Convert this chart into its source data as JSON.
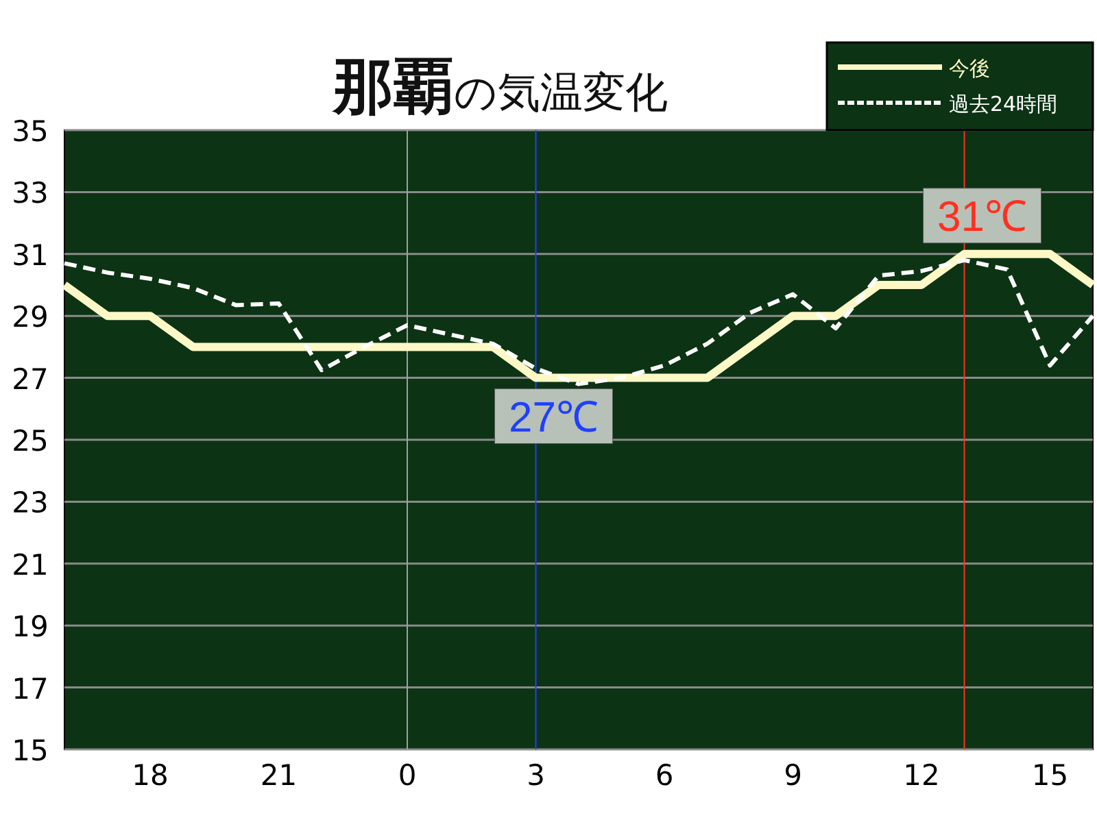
{
  "chart_data": {
    "type": "line",
    "title": "**那覇**の気温変化",
    "x": [
      "--01-01T16:00",
      "--01-01T17:00",
      "--01-01T18:00",
      "--01-01T19:00",
      "--01-01T20:00",
      "--01-01T21:00",
      "--01-01T22:00",
      "--01-01T23:00",
      "--01-02T00:00",
      "--01-02T01:00",
      "--01-02T02:00",
      "--01-02T03:00",
      "--01-02T04:00",
      "--01-02T05:00",
      "--01-02T06:00",
      "--01-02T07:00",
      "--01-02T08:00",
      "--01-02T09:00",
      "--01-02T10:00",
      "--01-02T11:00",
      "--01-02T12:00",
      "--01-02T13:00",
      "--01-02T14:00",
      "--01-02T15:00",
      "--01-02T16:00"
    ],
    "series": [
      {
        "name": "今後",
        "color": "#fdf8c6",
        "line_style": "solid",
        "values": [
          30,
          29,
          29,
          28,
          28,
          28,
          28,
          28,
          28,
          28,
          28,
          27,
          27,
          27,
          27,
          27,
          28,
          29,
          29,
          30,
          30,
          31,
          31,
          31,
          30
        ]
      },
      {
        "name": "過去24時間",
        "color": "#ffffff",
        "line_style": "dashed",
        "values": [
          30.7,
          30.4,
          30.2,
          29.9,
          29.35,
          29.4,
          27.25,
          28.0,
          28.7,
          28.4,
          28.1,
          27.3,
          26.8,
          27.0,
          27.4,
          28.1,
          29.1,
          29.7,
          28.6,
          30.3,
          30.45,
          30.8,
          30.5,
          27.4,
          29.0
        ]
      }
    ],
    "xlim": [
      "--01-01T16:00",
      "--01-02T16:00"
    ],
    "xticks": [
      {
        "value": "--01-01T18:00",
        "label": "18"
      },
      {
        "value": "--01-01T21:00",
        "label": "21"
      },
      {
        "value": "--01-02T00:00",
        "label": "0"
      },
      {
        "value": "--01-02T03:00",
        "label": "3"
      },
      {
        "value": "--01-02T06:00",
        "label": "6"
      },
      {
        "value": "--01-02T09:00",
        "label": "9"
      },
      {
        "value": "--01-02T12:00",
        "label": "12"
      },
      {
        "value": "--01-02T15:00",
        "label": "15"
      }
    ],
    "ylim": [
      15,
      35
    ],
    "yticks": [
      15,
      17,
      19,
      21,
      23,
      25,
      27,
      29,
      31,
      33,
      35
    ],
    "grid": "y",
    "ref_lines": [
      {
        "axis": "x",
        "value": "--01-02T00:00",
        "color": "#a0a0a0"
      },
      {
        "axis": "x",
        "value": "--01-02T03:00",
        "color": "#2040ff"
      },
      {
        "axis": "x",
        "value": "--01-02T13:00",
        "color": "#ff3020"
      }
    ],
    "annotations": [
      {
        "text": "27℃",
        "x": "--01-02T03:00",
        "y": 27
      },
      {
        "text": "31℃",
        "x": "--01-02T13:00",
        "y": 31
      }
    ],
    "legend": "top right",
    "marker": "none"
  }
}
